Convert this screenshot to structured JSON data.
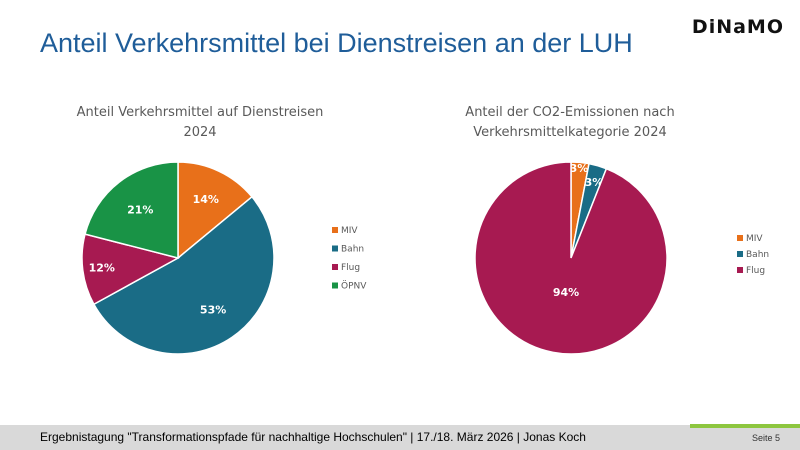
{
  "slide": {
    "title": "Anteil Verkehrsmittel bei Dienstreisen an der LUH",
    "logo": "DiNaMO",
    "footer": "Ergebnistagung \"Transformationspfade für nachhaltige Hochschulen\" | 17./18. März 2026 | Jonas Koch",
    "page": "Seite 5"
  },
  "chart_data": [
    {
      "type": "pie",
      "title_lines": [
        "Anteil Verkehrsmittel auf Dienstreisen",
        "2024"
      ],
      "categories": [
        "MIV",
        "Bahn",
        "Flug",
        "ÖPNV"
      ],
      "values": [
        14,
        53,
        12,
        21
      ],
      "labels": [
        "14%",
        "53%",
        "12%",
        "21%"
      ],
      "colors": [
        "#e8701a",
        "#1a6c86",
        "#a71a51",
        "#199346"
      ],
      "legend_position": "right"
    },
    {
      "type": "pie",
      "title_lines": [
        "Anteil der CO2-Emissionen nach",
        "Verkehrsmittelkategorie 2024"
      ],
      "categories": [
        "MIV",
        "Bahn",
        "Flug"
      ],
      "values": [
        3,
        3,
        94
      ],
      "labels": [
        "3%",
        "3%",
        "94%"
      ],
      "colors": [
        "#e8701a",
        "#1a6c86",
        "#a71a51"
      ],
      "legend_position": "right"
    }
  ]
}
